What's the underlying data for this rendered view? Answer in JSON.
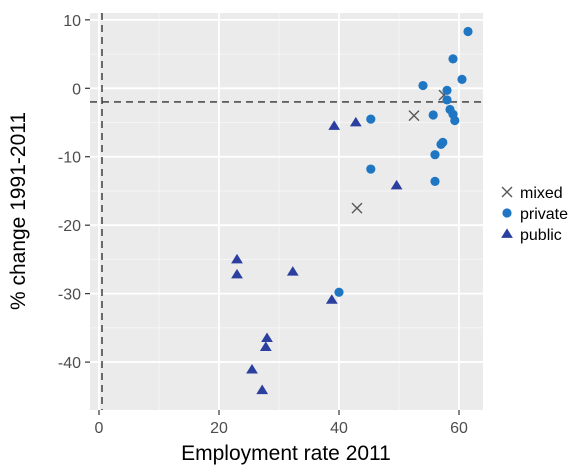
{
  "chart_data": {
    "type": "scatter",
    "title": "",
    "xlabel": "Employment rate 2011",
    "ylabel": "% change 1991-2011",
    "xlim": [
      -1.5,
      64
    ],
    "ylim": [
      -47,
      11
    ],
    "x_ticks": [
      0,
      20,
      40,
      60
    ],
    "y_ticks": [
      10,
      0,
      -10,
      -20,
      -30,
      -40
    ],
    "grid": true,
    "legend_position": "right",
    "reference_lines": {
      "vertical_x": 0.5,
      "horizontal_y": -2
    },
    "series": [
      {
        "name": "mixed",
        "marker": "cross",
        "color": "#595959",
        "points": [
          {
            "x": 57.5,
            "y": -1.0
          },
          {
            "x": 52.5,
            "y": -4.0
          },
          {
            "x": 43.0,
            "y": -17.5
          }
        ]
      },
      {
        "name": "private",
        "marker": "circle",
        "color": "#1f77c4",
        "points": [
          {
            "x": 61.5,
            "y": 8.3
          },
          {
            "x": 59.0,
            "y": 4.3
          },
          {
            "x": 60.5,
            "y": 1.3
          },
          {
            "x": 54.0,
            "y": 0.4
          },
          {
            "x": 58.0,
            "y": -0.3
          },
          {
            "x": 58.0,
            "y": -1.7
          },
          {
            "x": 58.5,
            "y": -3.1
          },
          {
            "x": 55.7,
            "y": -3.9
          },
          {
            "x": 59.0,
            "y": -3.8
          },
          {
            "x": 59.3,
            "y": -4.7
          },
          {
            "x": 45.3,
            "y": -4.5
          },
          {
            "x": 57.3,
            "y": -7.9
          },
          {
            "x": 57.0,
            "y": -8.2
          },
          {
            "x": 56.0,
            "y": -9.7
          },
          {
            "x": 45.3,
            "y": -11.8
          },
          {
            "x": 56.0,
            "y": -13.6
          },
          {
            "x": 40.0,
            "y": -29.8
          }
        ]
      },
      {
        "name": "public",
        "marker": "triangle",
        "color": "#2b3f9e",
        "points": [
          {
            "x": 39.2,
            "y": -5.5
          },
          {
            "x": 42.8,
            "y": -5.0
          },
          {
            "x": 49.6,
            "y": -14.2
          },
          {
            "x": 23.0,
            "y": -25.0
          },
          {
            "x": 23.0,
            "y": -27.2
          },
          {
            "x": 32.3,
            "y": -26.8
          },
          {
            "x": 38.8,
            "y": -30.9
          },
          {
            "x": 28.0,
            "y": -36.5
          },
          {
            "x": 27.8,
            "y": -37.8
          },
          {
            "x": 25.5,
            "y": -41.1
          },
          {
            "x": 27.2,
            "y": -44.1
          }
        ]
      }
    ]
  }
}
